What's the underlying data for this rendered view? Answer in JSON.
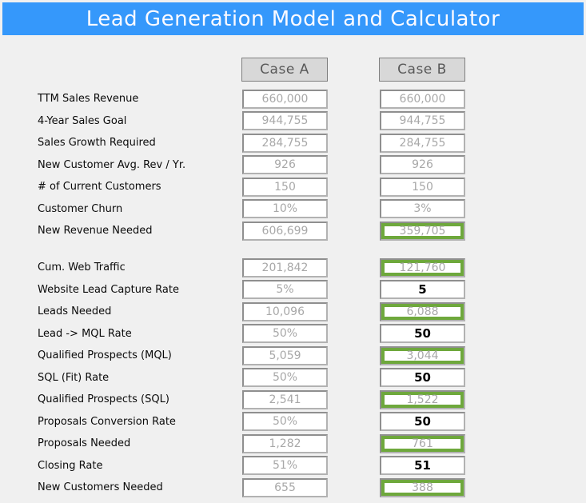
{
  "window": {
    "title": "Lead Generation Model and Calculator"
  },
  "colors": {
    "banner_blue": "#3598fb",
    "banner_text": "#fbfaff",
    "highlight_green": "#6ea83c",
    "field_border_gray": "#8f8f8f",
    "computed_text_gray": "#a8a8a8",
    "button_gray": "#d8d8d8",
    "background": "#f0f0f0"
  },
  "columns": {
    "a_label": "Case A",
    "b_label": "Case B"
  },
  "sections": [
    {
      "rows": [
        {
          "label": "TTM Sales Revenue",
          "a": {
            "value": "660,000",
            "variant": "computed"
          },
          "b": {
            "value": "660,000",
            "variant": "computed"
          }
        },
        {
          "label": "4-Year Sales Goal",
          "a": {
            "value": "944,755",
            "variant": "computed"
          },
          "b": {
            "value": "944,755",
            "variant": "computed"
          }
        },
        {
          "label": "Sales Growth Required",
          "a": {
            "value": "284,755",
            "variant": "computed"
          },
          "b": {
            "value": "284,755",
            "variant": "computed"
          }
        },
        {
          "label": "New Customer Avg. Rev / Yr.",
          "a": {
            "value": "926",
            "variant": "computed"
          },
          "b": {
            "value": "926",
            "variant": "computed"
          }
        },
        {
          "label": "# of Current Customers",
          "a": {
            "value": "150",
            "variant": "computed"
          },
          "b": {
            "value": "150",
            "variant": "computed"
          }
        },
        {
          "label": "Customer Churn",
          "a": {
            "value": "10%",
            "variant": "computed"
          },
          "b": {
            "value": "3%",
            "variant": "computed"
          }
        },
        {
          "label": "New Revenue Needed",
          "a": {
            "value": "606,699",
            "variant": "computed"
          },
          "b": {
            "value": "359,705",
            "variant": "highlight"
          }
        }
      ]
    },
    {
      "rows": [
        {
          "label": "Cum. Web Traffic",
          "a": {
            "value": "201,842",
            "variant": "computed"
          },
          "b": {
            "value": "121,760",
            "variant": "highlight"
          }
        },
        {
          "label": "Website Lead Capture Rate",
          "a": {
            "value": "5%",
            "variant": "computed"
          },
          "b": {
            "value": "5",
            "variant": "input"
          }
        },
        {
          "label": "Leads Needed",
          "a": {
            "value": "10,096",
            "variant": "computed"
          },
          "b": {
            "value": "6,088",
            "variant": "highlight"
          }
        },
        {
          "label": "Lead -> MQL Rate",
          "a": {
            "value": "50%",
            "variant": "computed"
          },
          "b": {
            "value": "50",
            "variant": "input"
          }
        },
        {
          "label": "Qualified Prospects (MQL)",
          "a": {
            "value": "5,059",
            "variant": "computed"
          },
          "b": {
            "value": "3,044",
            "variant": "highlight"
          }
        },
        {
          "label": "SQL (Fit) Rate",
          "a": {
            "value": "50%",
            "variant": "computed"
          },
          "b": {
            "value": "50",
            "variant": "input"
          }
        },
        {
          "label": "Qualified Prospects (SQL)",
          "a": {
            "value": "2,541",
            "variant": "computed"
          },
          "b": {
            "value": "1,522",
            "variant": "highlight"
          }
        },
        {
          "label": "Proposals Conversion Rate",
          "a": {
            "value": "50%",
            "variant": "computed"
          },
          "b": {
            "value": "50",
            "variant": "input"
          }
        },
        {
          "label": "Proposals Needed",
          "a": {
            "value": "1,282",
            "variant": "computed"
          },
          "b": {
            "value": "761",
            "variant": "highlight"
          }
        },
        {
          "label": "Closing Rate",
          "a": {
            "value": "51%",
            "variant": "computed"
          },
          "b": {
            "value": "51",
            "variant": "input"
          }
        },
        {
          "label": "New Customers Needed",
          "a": {
            "value": "655",
            "variant": "computed"
          },
          "b": {
            "value": "388",
            "variant": "highlight"
          }
        }
      ]
    }
  ]
}
